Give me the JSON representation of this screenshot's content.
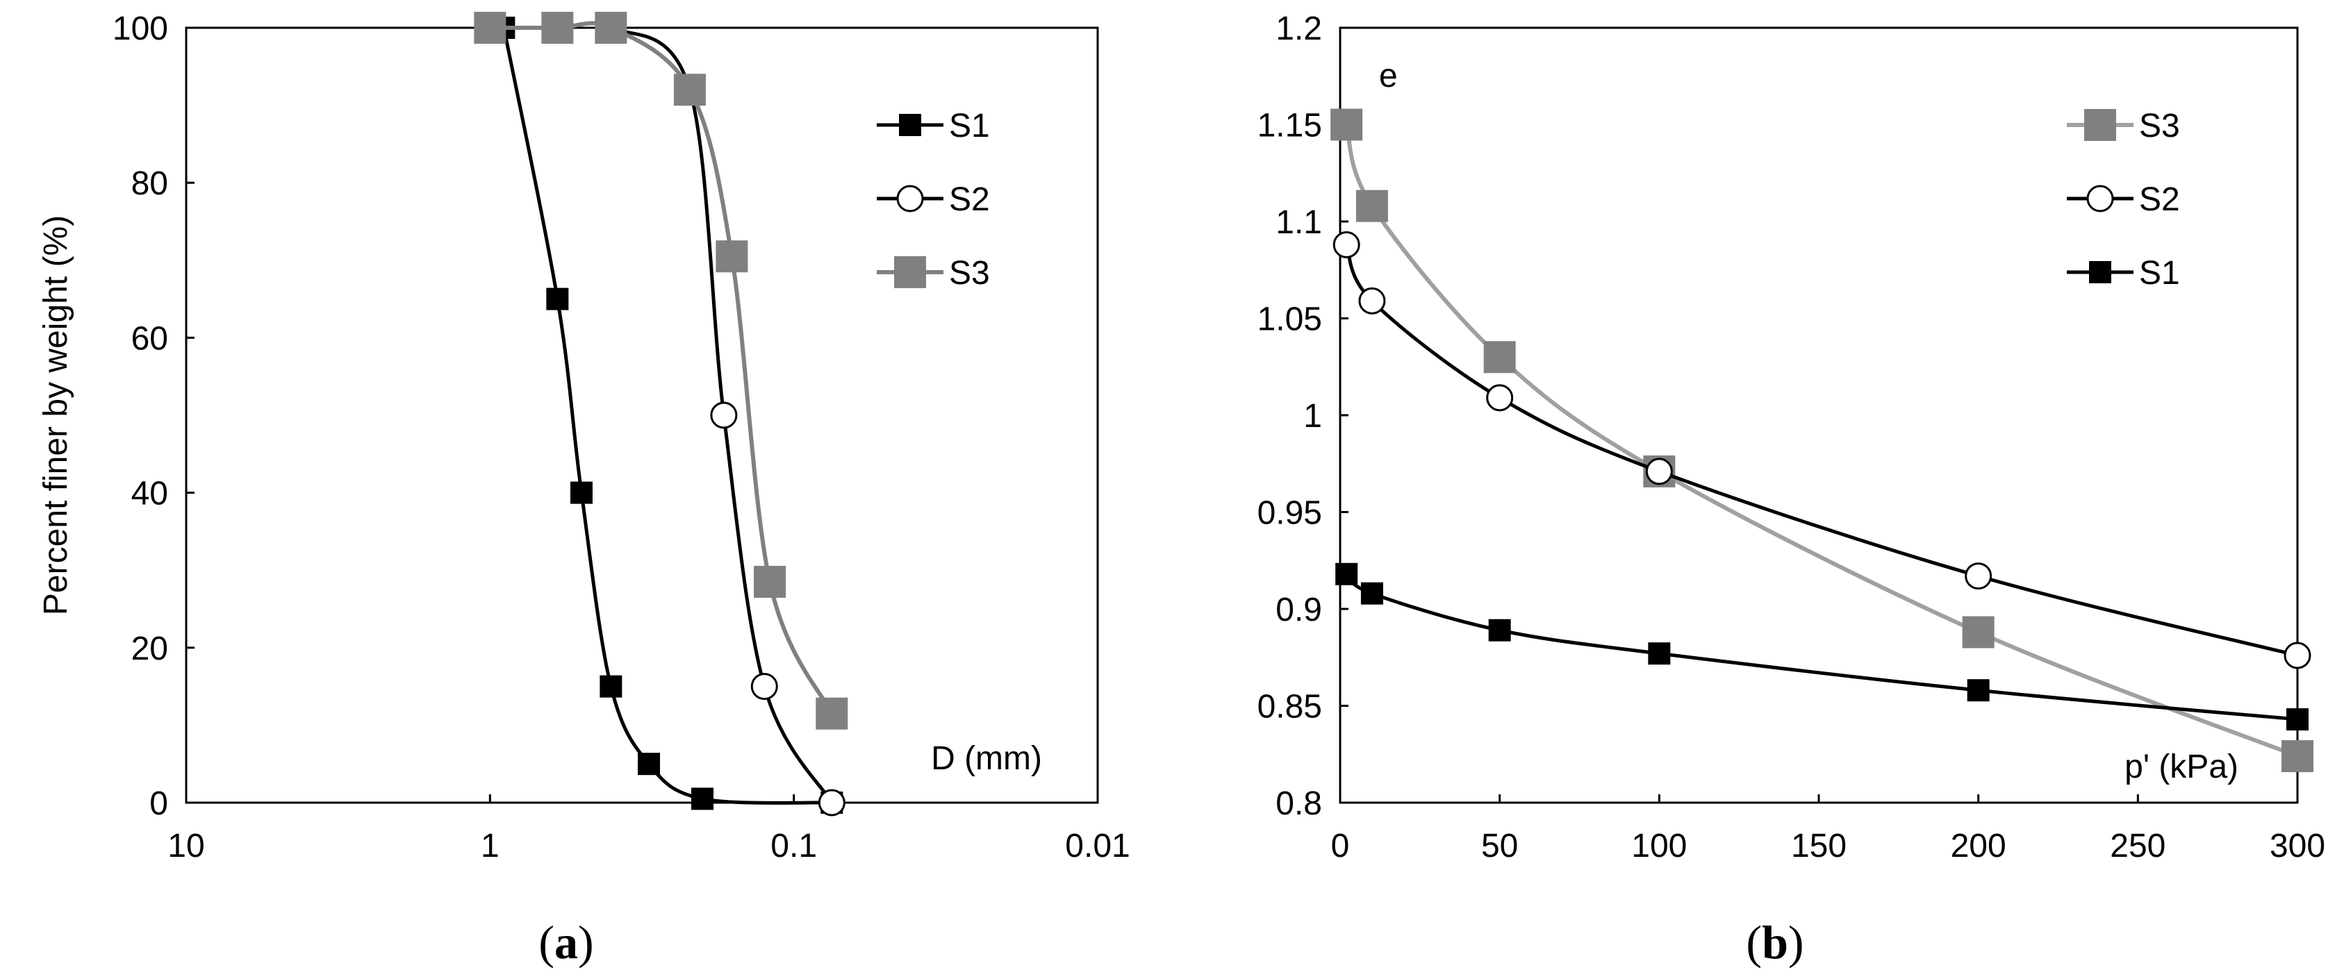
{
  "chart_data": [
    {
      "panel": "(a)",
      "caption_open": "(",
      "caption_letter": "a",
      "caption_close": ")",
      "type": "line",
      "xlabel": "D (mm)",
      "ylabel": "Percent finer by weight (%)",
      "xscale": "log-reversed",
      "xlim": [
        10,
        0.01
      ],
      "ylim": [
        0,
        100
      ],
      "x_ticks": [
        "10",
        "1",
        "0.1",
        "0.01"
      ],
      "x_tick_values": [
        10,
        1,
        0.1,
        0.01
      ],
      "y_ticks": [
        "0",
        "20",
        "40",
        "60",
        "80",
        "100"
      ],
      "y_tick_values": [
        0,
        20,
        40,
        60,
        80,
        100
      ],
      "grid": false,
      "legend_position": "top-right",
      "series": [
        {
          "name": "S1",
          "marker": "square-filled",
          "color": "#000000",
          "x": [
            0.9,
            0.6,
            0.5,
            0.4,
            0.3,
            0.2,
            0.075
          ],
          "y": [
            100,
            65,
            40,
            15,
            5,
            0.5,
            0
          ]
        },
        {
          "name": "S2",
          "marker": "circle-open",
          "color": "#000000",
          "x": [
            1.0,
            0.6,
            0.4,
            0.22,
            0.17,
            0.125,
            0.075
          ],
          "y": [
            100,
            100,
            100,
            92,
            50,
            15,
            0
          ]
        },
        {
          "name": "S3",
          "marker": "square-filled-large",
          "color": "#808080",
          "x": [
            1.0,
            0.6,
            0.4,
            0.22,
            0.16,
            0.12,
            0.075
          ],
          "y": [
            100,
            100,
            100,
            92,
            70.5,
            28.5,
            11.5
          ]
        }
      ]
    },
    {
      "panel": "(b)",
      "caption_open": "(",
      "caption_letter": "b",
      "caption_close": ")",
      "type": "line",
      "xlabel": "p' (kPa)",
      "ylabel": "e",
      "xlim": [
        0,
        300
      ],
      "ylim": [
        0.8,
        1.2
      ],
      "x_ticks": [
        "0",
        "50",
        "100",
        "150",
        "200",
        "250",
        "300"
      ],
      "x_tick_values": [
        0,
        50,
        100,
        150,
        200,
        250,
        300
      ],
      "y_ticks": [
        "0.8",
        "0.85",
        "0.9",
        "0.95",
        "1",
        "1.05",
        "1.1",
        "1.15",
        "1.2"
      ],
      "y_tick_values": [
        0.8,
        0.85,
        0.9,
        0.95,
        1,
        1.05,
        1.1,
        1.15,
        1.2
      ],
      "grid": false,
      "legend_position": "top-right",
      "series": [
        {
          "name": "S3",
          "marker": "square-filled-large",
          "color": "#808080",
          "x": [
            2,
            10,
            50,
            100,
            200,
            300
          ],
          "y": [
            1.15,
            1.108,
            1.03,
            0.971,
            0.888,
            0.824
          ]
        },
        {
          "name": "S2",
          "marker": "circle-open",
          "color": "#000000",
          "x": [
            2,
            10,
            50,
            100,
            200,
            300
          ],
          "y": [
            1.088,
            1.059,
            1.009,
            0.971,
            0.917,
            0.876
          ]
        },
        {
          "name": "S1",
          "marker": "square-filled",
          "color": "#000000",
          "x": [
            2,
            10,
            50,
            100,
            200,
            300
          ],
          "y": [
            0.918,
            0.908,
            0.889,
            0.877,
            0.858,
            0.843
          ]
        }
      ]
    }
  ]
}
